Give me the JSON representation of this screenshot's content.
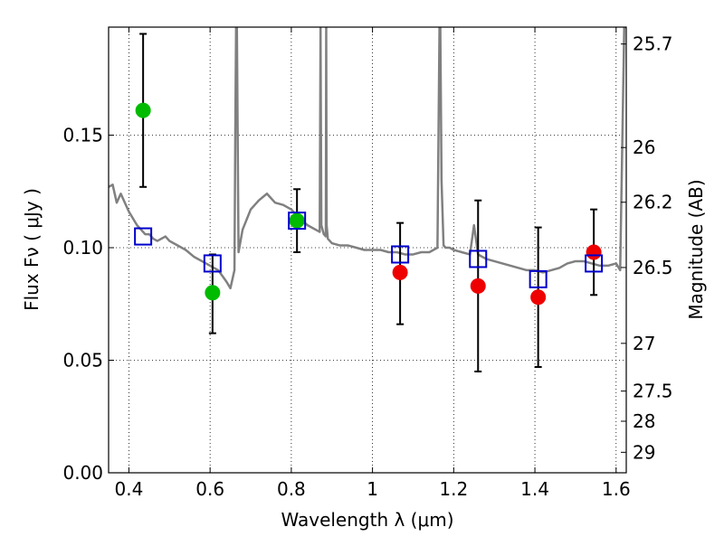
{
  "chart_data": {
    "type": "scatter",
    "xlabel": "Wavelength  λ (μm)",
    "ylabel": "Flux  Fν  ( μJy )",
    "y2label": "Magnitude (AB)",
    "xlim": [
      0.35,
      1.625
    ],
    "ylim": [
      0.0,
      0.198
    ],
    "grid": true,
    "x_ticks": [
      {
        "value": 0.4,
        "label": "0.4"
      },
      {
        "value": 0.6,
        "label": "0.6"
      },
      {
        "value": 0.8,
        "label": "0.8"
      },
      {
        "value": 1.0,
        "label": "1"
      },
      {
        "value": 1.2,
        "label": "1.2"
      },
      {
        "value": 1.4,
        "label": "1.4"
      },
      {
        "value": 1.6,
        "label": "1.6"
      }
    ],
    "y_ticks": [
      {
        "value": 0.0,
        "label": "0.00"
      },
      {
        "value": 0.05,
        "label": "0.05"
      },
      {
        "value": 0.1,
        "label": "0.10"
      },
      {
        "value": 0.15,
        "label": "0.15"
      }
    ],
    "y2_ticks": [
      {
        "flux": 0.1905,
        "label": "25.7"
      },
      {
        "flux": 0.1445,
        "label": "26"
      },
      {
        "flux": 0.1202,
        "label": "26.2"
      },
      {
        "flux": 0.0912,
        "label": "26.5"
      },
      {
        "flux": 0.0575,
        "label": "27"
      },
      {
        "flux": 0.0363,
        "label": "27.5"
      },
      {
        "flux": 0.0229,
        "label": "28"
      },
      {
        "flux": 0.0091,
        "label": "29"
      }
    ],
    "series": [
      {
        "color": "#00bb00",
        "marker": "circle",
        "points": [
          {
            "x": 0.435,
            "y": 0.161,
            "yerr_low": 0.127,
            "yerr_high": 0.195
          },
          {
            "x": 0.606,
            "y": 0.08,
            "yerr_low": 0.062,
            "yerr_high": 0.097
          },
          {
            "x": 0.814,
            "y": 0.112,
            "yerr_low": 0.098,
            "yerr_high": 0.126
          }
        ]
      },
      {
        "color": "#ee0000",
        "marker": "circle",
        "points": [
          {
            "x": 1.068,
            "y": 0.089,
            "yerr_low": 0.066,
            "yerr_high": 0.111
          },
          {
            "x": 1.26,
            "y": 0.083,
            "yerr_low": 0.045,
            "yerr_high": 0.121
          },
          {
            "x": 1.408,
            "y": 0.078,
            "yerr_low": 0.047,
            "yerr_high": 0.109
          },
          {
            "x": 1.545,
            "y": 0.098,
            "yerr_low": 0.079,
            "yerr_high": 0.117
          }
        ]
      },
      {
        "color": "#0000cc",
        "marker": "square-open",
        "points": [
          {
            "x": 0.435,
            "y": 0.105
          },
          {
            "x": 0.606,
            "y": 0.093
          },
          {
            "x": 0.814,
            "y": 0.112
          },
          {
            "x": 1.068,
            "y": 0.097
          },
          {
            "x": 1.26,
            "y": 0.095
          },
          {
            "x": 1.408,
            "y": 0.086
          },
          {
            "x": 1.545,
            "y": 0.093
          }
        ]
      },
      {
        "color": "#808080",
        "marker": "line",
        "x": [
          0.35,
          0.36,
          0.37,
          0.38,
          0.39,
          0.4,
          0.41,
          0.42,
          0.43,
          0.44,
          0.45,
          0.46,
          0.47,
          0.48,
          0.49,
          0.5,
          0.52,
          0.54,
          0.56,
          0.58,
          0.6,
          0.62,
          0.64,
          0.65,
          0.66,
          0.662,
          0.664,
          0.666,
          0.67,
          0.68,
          0.7,
          0.72,
          0.74,
          0.76,
          0.78,
          0.8,
          0.82,
          0.84,
          0.86,
          0.87,
          0.871,
          0.872,
          0.874,
          0.88,
          0.885,
          0.886,
          0.887,
          0.89,
          0.9,
          0.92,
          0.94,
          0.96,
          0.98,
          1.0,
          1.02,
          1.04,
          1.06,
          1.08,
          1.1,
          1.12,
          1.14,
          1.16,
          1.165,
          1.167,
          1.17,
          1.175,
          1.18,
          1.19,
          1.2,
          1.22,
          1.24,
          1.25,
          1.26,
          1.27,
          1.28,
          1.3,
          1.32,
          1.34,
          1.36,
          1.38,
          1.4,
          1.42,
          1.44,
          1.46,
          1.48,
          1.5,
          1.52,
          1.54,
          1.56,
          1.58,
          1.6,
          1.61,
          1.62,
          1.625
        ],
        "y": [
          0.127,
          0.128,
          0.12,
          0.124,
          0.12,
          0.116,
          0.113,
          0.11,
          0.108,
          0.106,
          0.106,
          0.104,
          0.103,
          0.104,
          0.105,
          0.103,
          0.101,
          0.099,
          0.096,
          0.094,
          0.092,
          0.09,
          0.085,
          0.082,
          0.09,
          0.15,
          0.198,
          0.198,
          0.098,
          0.108,
          0.117,
          0.121,
          0.124,
          0.12,
          0.119,
          0.117,
          0.113,
          0.11,
          0.108,
          0.107,
          0.15,
          0.198,
          0.11,
          0.106,
          0.105,
          0.198,
          0.11,
          0.104,
          0.102,
          0.101,
          0.101,
          0.1,
          0.099,
          0.099,
          0.099,
          0.098,
          0.098,
          0.097,
          0.097,
          0.098,
          0.098,
          0.1,
          0.198,
          0.198,
          0.13,
          0.101,
          0.1,
          0.1,
          0.099,
          0.098,
          0.097,
          0.11,
          0.097,
          0.096,
          0.095,
          0.094,
          0.093,
          0.092,
          0.091,
          0.09,
          0.09,
          0.089,
          0.09,
          0.091,
          0.093,
          0.094,
          0.094,
          0.093,
          0.092,
          0.092,
          0.093,
          0.09,
          0.198,
          0.198
        ]
      }
    ]
  }
}
